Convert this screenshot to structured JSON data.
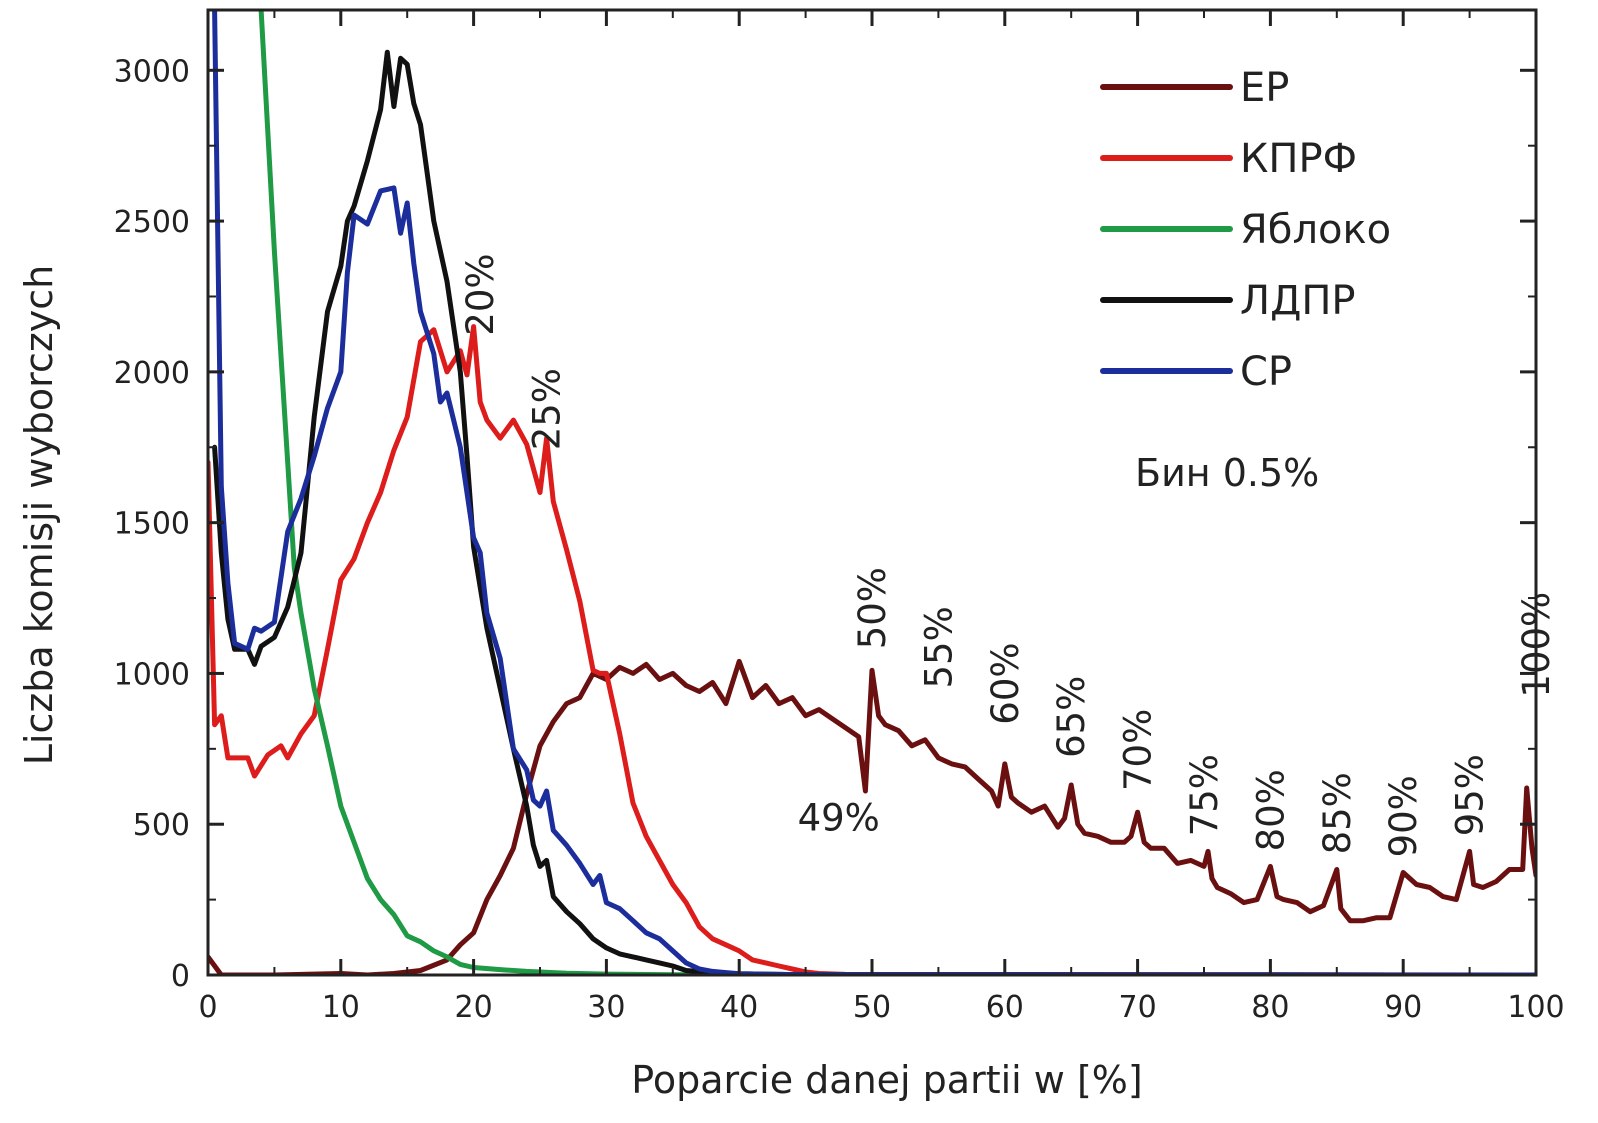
{
  "chart_data": {
    "type": "line",
    "xlabel": "Poparcie danej partii w [%]",
    "ylabel": "Liczba komisji wyborczych",
    "xlim": [
      0,
      100
    ],
    "ylim": [
      0,
      3200
    ],
    "x_ticks": [
      "0",
      "10",
      "20",
      "30",
      "40",
      "50",
      "60",
      "70",
      "80",
      "90",
      "100"
    ],
    "y_ticks": [
      "0",
      "500",
      "1000",
      "1500",
      "2000",
      "2500",
      "3000"
    ],
    "grid": false,
    "legend_position": "top-right",
    "bin_note": "Бин 0.5%",
    "series": [
      {
        "name": "ЕР",
        "color": "#6b1010",
        "points": [
          [
            0,
            60
          ],
          [
            1,
            0
          ],
          [
            5,
            0
          ],
          [
            10,
            5
          ],
          [
            12,
            0
          ],
          [
            14,
            5
          ],
          [
            16,
            15
          ],
          [
            18,
            50
          ],
          [
            19,
            100
          ],
          [
            20,
            140
          ],
          [
            21,
            250
          ],
          [
            22,
            330
          ],
          [
            23,
            420
          ],
          [
            24,
            600
          ],
          [
            25,
            760
          ],
          [
            26,
            840
          ],
          [
            27,
            900
          ],
          [
            28,
            920
          ],
          [
            29,
            1000
          ],
          [
            30,
            980
          ],
          [
            31,
            1020
          ],
          [
            32,
            1000
          ],
          [
            33,
            1030
          ],
          [
            34,
            980
          ],
          [
            35,
            1000
          ],
          [
            36,
            960
          ],
          [
            37,
            940
          ],
          [
            38,
            970
          ],
          [
            39,
            900
          ],
          [
            40,
            1040
          ],
          [
            41,
            920
          ],
          [
            42,
            960
          ],
          [
            43,
            900
          ],
          [
            44,
            920
          ],
          [
            45,
            860
          ],
          [
            46,
            880
          ],
          [
            47,
            850
          ],
          [
            48,
            820
          ],
          [
            49,
            790
          ],
          [
            49.5,
            610
          ],
          [
            50,
            1010
          ],
          [
            50.5,
            860
          ],
          [
            51,
            830
          ],
          [
            52,
            810
          ],
          [
            53,
            760
          ],
          [
            54,
            780
          ],
          [
            55,
            720
          ],
          [
            56,
            700
          ],
          [
            57,
            690
          ],
          [
            58,
            650
          ],
          [
            59,
            610
          ],
          [
            59.5,
            560
          ],
          [
            60,
            700
          ],
          [
            60.5,
            590
          ],
          [
            61,
            570
          ],
          [
            62,
            540
          ],
          [
            63,
            560
          ],
          [
            64,
            490
          ],
          [
            64.5,
            520
          ],
          [
            65,
            630
          ],
          [
            65.5,
            500
          ],
          [
            66,
            470
          ],
          [
            67,
            460
          ],
          [
            68,
            440
          ],
          [
            69,
            440
          ],
          [
            69.5,
            460
          ],
          [
            70,
            540
          ],
          [
            70.5,
            440
          ],
          [
            71,
            420
          ],
          [
            72,
            420
          ],
          [
            73,
            370
          ],
          [
            74,
            380
          ],
          [
            75,
            360
          ],
          [
            75.3,
            410
          ],
          [
            75.6,
            320
          ],
          [
            76,
            290
          ],
          [
            77,
            270
          ],
          [
            78,
            240
          ],
          [
            79,
            250
          ],
          [
            80,
            360
          ],
          [
            80.5,
            260
          ],
          [
            81,
            250
          ],
          [
            82,
            240
          ],
          [
            83,
            210
          ],
          [
            84,
            230
          ],
          [
            85,
            350
          ],
          [
            85.3,
            220
          ],
          [
            86,
            180
          ],
          [
            87,
            180
          ],
          [
            88,
            190
          ],
          [
            89,
            190
          ],
          [
            90,
            340
          ],
          [
            91,
            300
          ],
          [
            92,
            290
          ],
          [
            93,
            260
          ],
          [
            94,
            250
          ],
          [
            95,
            410
          ],
          [
            95.3,
            300
          ],
          [
            96,
            290
          ],
          [
            97,
            310
          ],
          [
            98,
            350
          ],
          [
            99,
            350
          ],
          [
            99.3,
            620
          ],
          [
            99.7,
            420
          ],
          [
            100,
            330
          ]
        ]
      },
      {
        "name": "КПРФ",
        "color": "#dd1c1c",
        "points": [
          [
            0,
            1700
          ],
          [
            0.5,
            830
          ],
          [
            1,
            860
          ],
          [
            1.5,
            720
          ],
          [
            3,
            720
          ],
          [
            3.5,
            660
          ],
          [
            4.5,
            730
          ],
          [
            5.5,
            760
          ],
          [
            6,
            720
          ],
          [
            7,
            800
          ],
          [
            8,
            860
          ],
          [
            9,
            1080
          ],
          [
            10,
            1310
          ],
          [
            11,
            1380
          ],
          [
            12,
            1500
          ],
          [
            13,
            1600
          ],
          [
            14,
            1740
          ],
          [
            15,
            1850
          ],
          [
            16,
            2100
          ],
          [
            17,
            2140
          ],
          [
            18,
            2000
          ],
          [
            19,
            2070
          ],
          [
            19.5,
            1990
          ],
          [
            20,
            2150
          ],
          [
            20.5,
            1900
          ],
          [
            21,
            1840
          ],
          [
            22,
            1780
          ],
          [
            23,
            1840
          ],
          [
            24,
            1760
          ],
          [
            25,
            1600
          ],
          [
            25.5,
            1780
          ],
          [
            26,
            1570
          ],
          [
            27,
            1410
          ],
          [
            28,
            1240
          ],
          [
            29,
            1010
          ],
          [
            29.5,
            1000
          ],
          [
            30,
            1000
          ],
          [
            31,
            800
          ],
          [
            32,
            570
          ],
          [
            33,
            460
          ],
          [
            34,
            380
          ],
          [
            35,
            300
          ],
          [
            36,
            240
          ],
          [
            37,
            160
          ],
          [
            38,
            120
          ],
          [
            39,
            100
          ],
          [
            40,
            80
          ],
          [
            41,
            50
          ],
          [
            42,
            40
          ],
          [
            43,
            30
          ],
          [
            44,
            20
          ],
          [
            45,
            10
          ],
          [
            46,
            5
          ],
          [
            48,
            2
          ],
          [
            100,
            0
          ]
        ]
      },
      {
        "name": "Яблоко",
        "color": "#1f9a45",
        "points": [
          [
            4,
            3200
          ],
          [
            5,
            2400
          ],
          [
            6,
            1700
          ],
          [
            6.5,
            1350
          ],
          [
            7,
            1200
          ],
          [
            8,
            950
          ],
          [
            9,
            760
          ],
          [
            10,
            560
          ],
          [
            11,
            440
          ],
          [
            12,
            320
          ],
          [
            13,
            250
          ],
          [
            14,
            200
          ],
          [
            15,
            130
          ],
          [
            16,
            110
          ],
          [
            17,
            80
          ],
          [
            18,
            60
          ],
          [
            19,
            35
          ],
          [
            20,
            25
          ],
          [
            22,
            18
          ],
          [
            24,
            12
          ],
          [
            27,
            6
          ],
          [
            30,
            3
          ],
          [
            35,
            1
          ],
          [
            100,
            0
          ]
        ]
      },
      {
        "name": "ЛДПР",
        "color": "#111111",
        "points": [
          [
            0.5,
            1750
          ],
          [
            1,
            1400
          ],
          [
            1.5,
            1180
          ],
          [
            2,
            1080
          ],
          [
            3,
            1080
          ],
          [
            3.5,
            1030
          ],
          [
            4,
            1090
          ],
          [
            5,
            1120
          ],
          [
            6,
            1220
          ],
          [
            7,
            1400
          ],
          [
            8,
            1850
          ],
          [
            9,
            2200
          ],
          [
            10,
            2350
          ],
          [
            10.5,
            2500
          ],
          [
            11,
            2550
          ],
          [
            12,
            2700
          ],
          [
            13,
            2870
          ],
          [
            13.5,
            3060
          ],
          [
            14,
            2880
          ],
          [
            14.5,
            3040
          ],
          [
            15,
            3020
          ],
          [
            15.5,
            2890
          ],
          [
            16,
            2820
          ],
          [
            17,
            2500
          ],
          [
            18,
            2300
          ],
          [
            19,
            2000
          ],
          [
            19.5,
            1720
          ],
          [
            20,
            1420
          ],
          [
            21,
            1150
          ],
          [
            22,
            950
          ],
          [
            23,
            750
          ],
          [
            24,
            560
          ],
          [
            24.5,
            430
          ],
          [
            25,
            360
          ],
          [
            25.5,
            380
          ],
          [
            26,
            260
          ],
          [
            27,
            210
          ],
          [
            28,
            170
          ],
          [
            29,
            120
          ],
          [
            30,
            90
          ],
          [
            31,
            70
          ],
          [
            32,
            60
          ],
          [
            33,
            50
          ],
          [
            34,
            40
          ],
          [
            35,
            30
          ],
          [
            36,
            15
          ],
          [
            38,
            8
          ],
          [
            40,
            4
          ],
          [
            45,
            1
          ],
          [
            100,
            0
          ]
        ]
      },
      {
        "name": "СР",
        "color": "#1c2d9c",
        "points": [
          [
            0.5,
            3200
          ],
          [
            1,
            1620
          ],
          [
            1.5,
            1300
          ],
          [
            2,
            1100
          ],
          [
            3,
            1080
          ],
          [
            3.5,
            1150
          ],
          [
            4,
            1140
          ],
          [
            5,
            1170
          ],
          [
            6,
            1470
          ],
          [
            7,
            1580
          ],
          [
            8,
            1720
          ],
          [
            9,
            1880
          ],
          [
            10,
            2000
          ],
          [
            10.5,
            2330
          ],
          [
            11,
            2520
          ],
          [
            12,
            2490
          ],
          [
            13,
            2600
          ],
          [
            14,
            2610
          ],
          [
            14.5,
            2460
          ],
          [
            15,
            2560
          ],
          [
            15.5,
            2360
          ],
          [
            16,
            2200
          ],
          [
            17,
            2060
          ],
          [
            17.5,
            1900
          ],
          [
            18,
            1930
          ],
          [
            19,
            1750
          ],
          [
            20,
            1450
          ],
          [
            20.5,
            1400
          ],
          [
            21,
            1200
          ],
          [
            22,
            1050
          ],
          [
            23,
            750
          ],
          [
            24,
            680
          ],
          [
            24.5,
            580
          ],
          [
            25,
            560
          ],
          [
            25.5,
            610
          ],
          [
            26,
            480
          ],
          [
            27,
            430
          ],
          [
            28,
            370
          ],
          [
            29,
            300
          ],
          [
            29.5,
            330
          ],
          [
            30,
            240
          ],
          [
            31,
            220
          ],
          [
            32,
            180
          ],
          [
            33,
            140
          ],
          [
            34,
            120
          ],
          [
            35,
            80
          ],
          [
            36,
            40
          ],
          [
            37,
            20
          ],
          [
            38,
            12
          ],
          [
            39,
            8
          ],
          [
            40,
            4
          ],
          [
            45,
            1
          ],
          [
            100,
            0
          ]
        ]
      }
    ],
    "annotations": [
      {
        "text": "20%",
        "x": 20.5,
        "y": 2120,
        "rotate": true
      },
      {
        "text": "25%",
        "x": 25.5,
        "y": 1740,
        "rotate": true
      },
      {
        "text": "50%",
        "x": 50,
        "y": 1080,
        "rotate": true
      },
      {
        "text": "55%",
        "x": 55,
        "y": 950,
        "rotate": true
      },
      {
        "text": "60%",
        "x": 60,
        "y": 830,
        "rotate": true
      },
      {
        "text": "65%",
        "x": 65,
        "y": 720,
        "rotate": true
      },
      {
        "text": "70%",
        "x": 70,
        "y": 610,
        "rotate": true
      },
      {
        "text": "75%",
        "x": 75,
        "y": 460,
        "rotate": true
      },
      {
        "text": "80%",
        "x": 80,
        "y": 410,
        "rotate": true
      },
      {
        "text": "85%",
        "x": 85,
        "y": 400,
        "rotate": true
      },
      {
        "text": "90%",
        "x": 90,
        "y": 390,
        "rotate": true
      },
      {
        "text": "95%",
        "x": 95,
        "y": 460,
        "rotate": true
      },
      {
        "text": "100%",
        "x": 100,
        "y": 920,
        "rotate": true
      },
      {
        "text": "49%",
        "x": 49,
        "y": 480,
        "rotate": false
      }
    ]
  }
}
